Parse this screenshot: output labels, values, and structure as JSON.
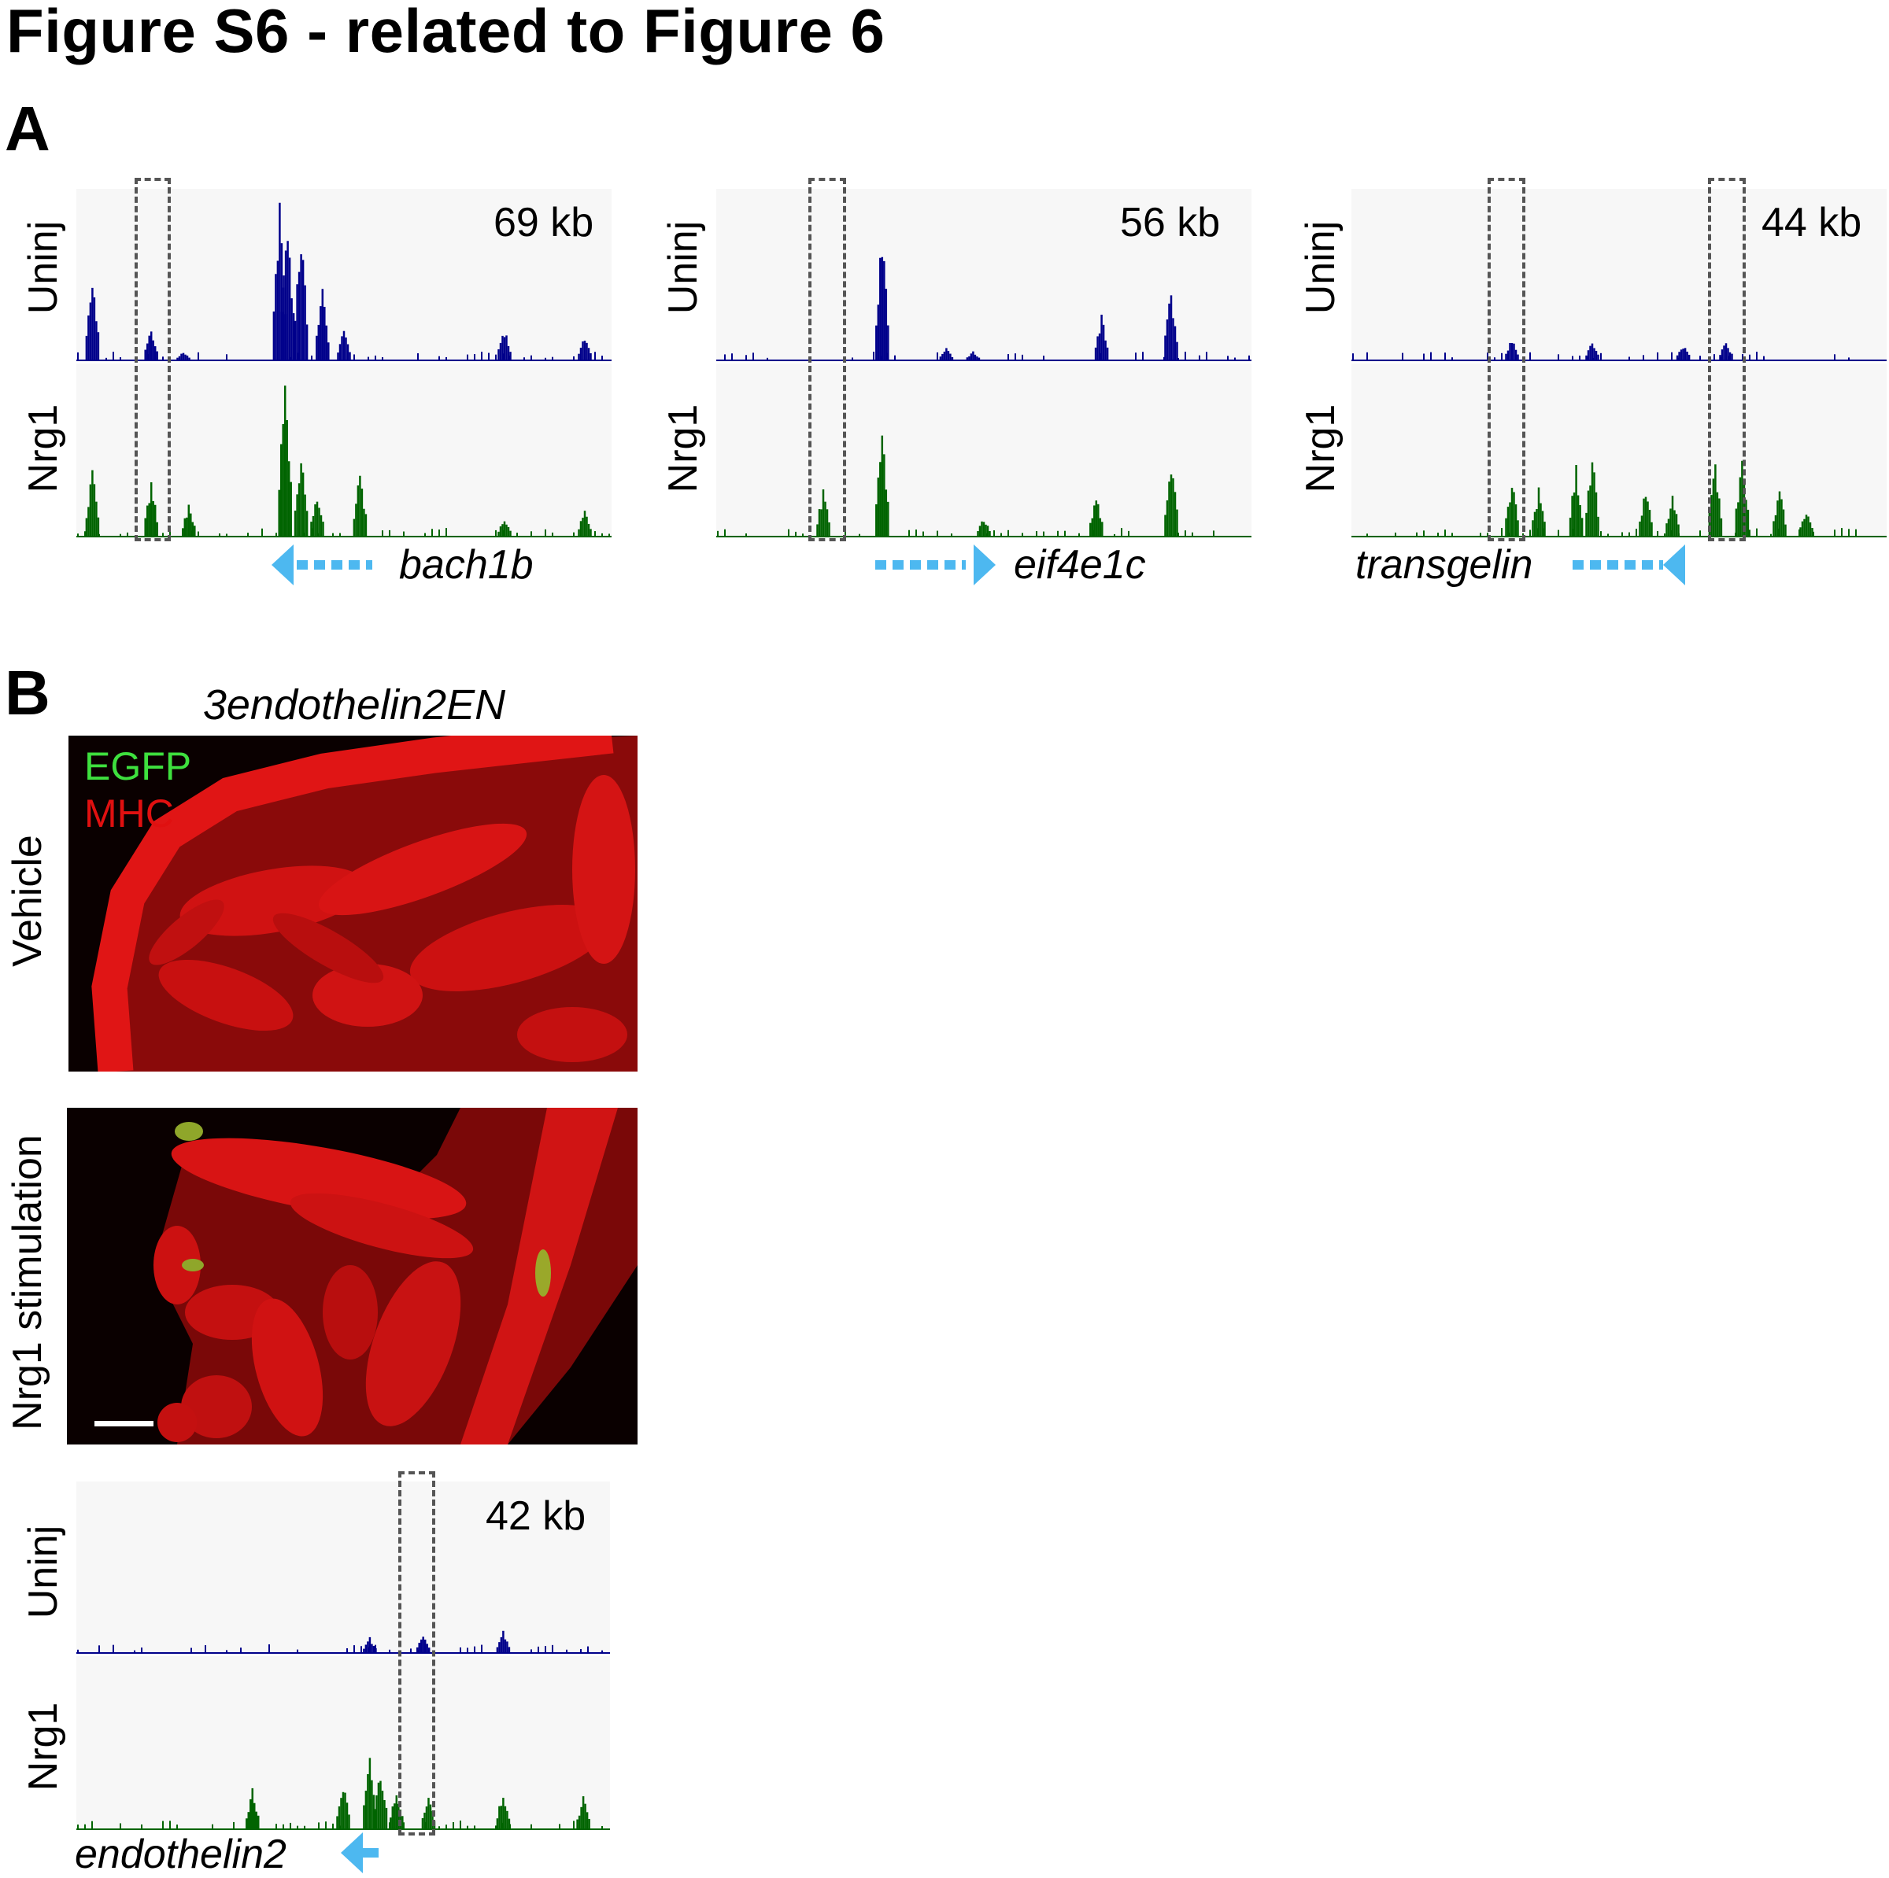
{
  "figure": {
    "title": "Figure S6 - related to Figure 6",
    "panel_a_label": "A",
    "panel_b_label": "B"
  },
  "tracks": {
    "row_label_top": "Uninj",
    "row_label_bottom": "Nrg1",
    "uninj_color": "#00008b",
    "nrg1_color": "#006400",
    "arrow_color": "#4db8f0",
    "box_color": "#555555"
  },
  "panel_a": [
    {
      "kb": "69 kb",
      "gene": "bach1b",
      "arrow_direction": "left"
    },
    {
      "kb": "56 kb",
      "gene": "eif4e1c",
      "arrow_direction": "right"
    },
    {
      "kb": "44 kb",
      "gene": "transgelin",
      "arrow_direction": "left"
    }
  ],
  "panel_b": {
    "header": "3endothelin2EN",
    "legend_egfp": "EGFP",
    "legend_mhc": "MHC",
    "legend_egfp_color": "#3ee03e",
    "legend_mhc_color": "#e01010",
    "row_vehicle": "Vehicle",
    "row_nrg1": "Nrg1 stimulation",
    "track": {
      "kb": "42 kb",
      "gene": "endothelin2",
      "arrow_direction": "left"
    }
  }
}
